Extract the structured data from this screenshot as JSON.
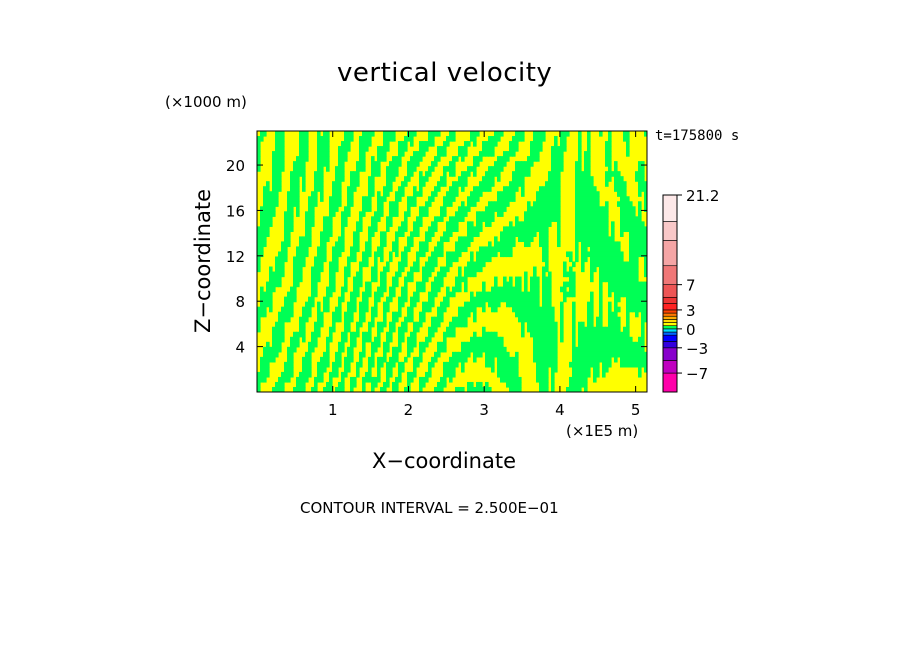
{
  "chart_data": {
    "type": "heatmap",
    "title": "vertical velocity",
    "time_label": "t=175800 s",
    "xlabel": "X−coordinate",
    "ylabel": "Z−coordinate",
    "x_unit": "(×1E5 m)",
    "y_unit": "(×1000 m)",
    "xlim": [
      0,
      5.15
    ],
    "ylim": [
      0,
      23
    ],
    "x_ticks": [
      "1",
      "2",
      "3",
      "4",
      "5"
    ],
    "x_tick_values": [
      1,
      2,
      3,
      4,
      5
    ],
    "y_ticks": [
      "4",
      "8",
      "12",
      "16",
      "20"
    ],
    "y_tick_values": [
      4,
      8,
      12,
      16,
      20
    ],
    "field_colors": {
      "positive": "#ffff00",
      "negative": "#00ff55"
    },
    "colorbar": {
      "tick_labels": [
        "21.2",
        "7",
        "3",
        "0",
        "−3",
        "−7"
      ],
      "tick_values": [
        21.2,
        7,
        3,
        0,
        -3,
        -7
      ],
      "min": -10,
      "bands": [
        {
          "from": -10,
          "to": -7,
          "color": "#ff00aa"
        },
        {
          "from": -7,
          "to": -5,
          "color": "#c000c0"
        },
        {
          "from": -5,
          "to": -3,
          "color": "#8800cc"
        },
        {
          "from": -3,
          "to": -2,
          "color": "#3300dd"
        },
        {
          "from": -2,
          "to": -1,
          "color": "#0000ff"
        },
        {
          "from": -1,
          "to": -0.5,
          "color": "#0066ff"
        },
        {
          "from": -0.5,
          "to": 0,
          "color": "#00ddff"
        },
        {
          "from": 0,
          "to": 0.5,
          "color": "#00ff55"
        },
        {
          "from": 0.5,
          "to": 1,
          "color": "#ffff00"
        },
        {
          "from": 1,
          "to": 1.5,
          "color": "#ffdd00"
        },
        {
          "from": 1.5,
          "to": 2,
          "color": "#ffaa00"
        },
        {
          "from": 2,
          "to": 2.5,
          "color": "#ff7700"
        },
        {
          "from": 2.5,
          "to": 3,
          "color": "#ff4400"
        },
        {
          "from": 3,
          "to": 4,
          "color": "#ff2222"
        },
        {
          "from": 4,
          "to": 5,
          "color": "#ee3333"
        },
        {
          "from": 5,
          "to": 7,
          "color": "#ee5555"
        },
        {
          "from": 7,
          "to": 10,
          "color": "#f07777"
        },
        {
          "from": 10,
          "to": 14,
          "color": "#f5a5a5"
        },
        {
          "from": 14,
          "to": 17,
          "color": "#f9c8c8"
        },
        {
          "from": 17,
          "to": 21.2,
          "color": "#fde8e8"
        }
      ]
    },
    "footer": "CONTOUR INTERVAL = 2.500E−01"
  }
}
